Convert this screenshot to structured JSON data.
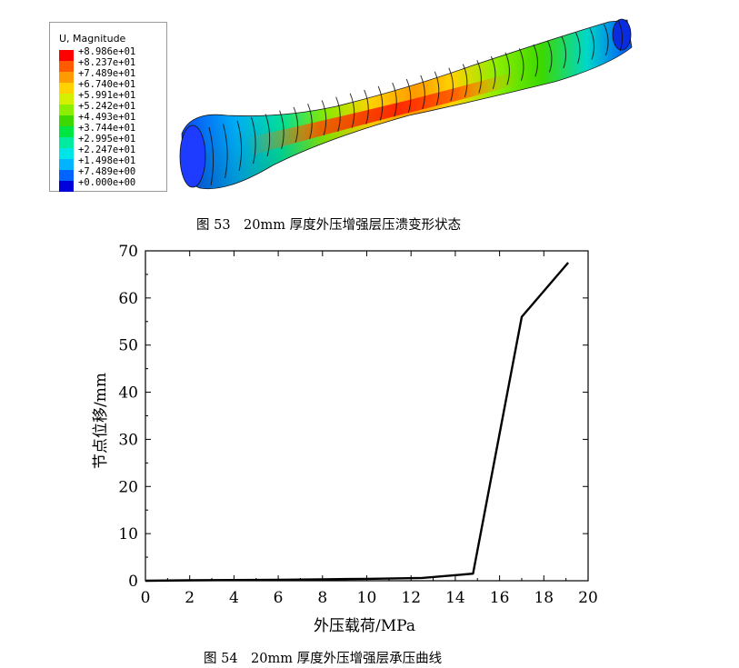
{
  "figure53": {
    "caption": "图 53　20mm 厚度外压增强层压溃变形状态",
    "legend": {
      "title": "U, Magnitude",
      "values": [
        "+8.986e+01",
        "+8.237e+01",
        "+7.489e+01",
        "+6.740e+01",
        "+5.991e+01",
        "+5.242e+01",
        "+4.493e+01",
        "+3.744e+01",
        "+2.995e+01",
        "+2.247e+01",
        "+1.498e+01",
        "+7.489e+00",
        "+0.000e+00"
      ],
      "colors": [
        "#ff0000",
        "#ff5a00",
        "#ff9a00",
        "#ffd200",
        "#d4f000",
        "#8cee00",
        "#3cd800",
        "#00e640",
        "#00eaa0",
        "#00e6e6",
        "#00b4ff",
        "#0064ff",
        "#0000dc"
      ]
    }
  },
  "figure54": {
    "caption": "图 54　20mm 厚度外压增强层承压曲线",
    "chart_data": {
      "type": "line",
      "xlabel": "外压载荷/MPa",
      "ylabel": "节点位移/mm",
      "xlim": [
        0,
        20
      ],
      "ylim": [
        0,
        70
      ],
      "xticks": [
        0,
        2,
        4,
        6,
        8,
        10,
        12,
        14,
        16,
        18,
        20
      ],
      "yticks": [
        0,
        10,
        20,
        30,
        40,
        50,
        60,
        70
      ],
      "grid": false,
      "series": [
        {
          "x": [
            0,
            2,
            4,
            6,
            8,
            10,
            12.5,
            14.8,
            17.0,
            19.1
          ],
          "y": [
            0.0,
            0.1,
            0.15,
            0.2,
            0.3,
            0.4,
            0.6,
            1.5,
            56.0,
            67.5
          ]
        }
      ]
    }
  }
}
